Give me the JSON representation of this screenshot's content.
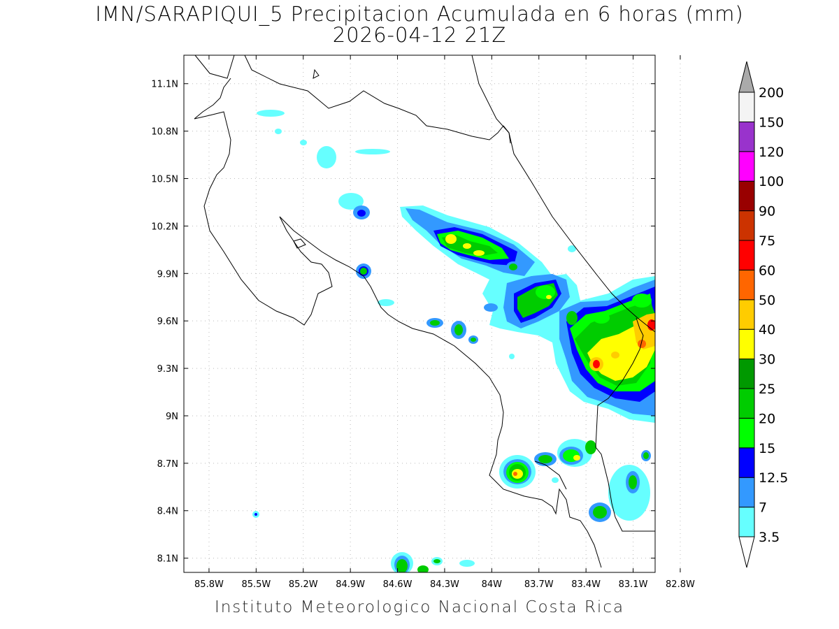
{
  "title": {
    "line1": "IMN/SARAPIQUI_5 Precipitacion Acumulada en 6 horas (mm)",
    "line2": "2026-04-12 21Z"
  },
  "credit": "Instituto Meteorologico Nacional Costa Rica",
  "axes": {
    "x_ticks": [
      "85.8W",
      "85.5W",
      "85.2W",
      "84.9W",
      "84.6W",
      "84.3W",
      "84W",
      "83.7W",
      "83.4W",
      "83.1W",
      "82.8W"
    ],
    "x_values": [
      -85.8,
      -85.5,
      -85.2,
      -84.9,
      -84.6,
      -84.3,
      -84.0,
      -83.7,
      -83.4,
      -83.1,
      -82.8
    ],
    "y_ticks": [
      "11.1N",
      "10.8N",
      "10.5N",
      "10.2N",
      "9.9N",
      "9.6N",
      "9.3N",
      "9N",
      "8.7N",
      "8.4N",
      "8.1N"
    ],
    "y_values": [
      11.1,
      10.8,
      10.5,
      10.2,
      9.9,
      9.6,
      9.3,
      9.0,
      8.7,
      8.4,
      8.1
    ],
    "lon_range": [
      -85.96,
      -82.96
    ],
    "lat_range": [
      8.01,
      11.28
    ]
  },
  "colorbar": {
    "labels": [
      "3.5",
      "7",
      "12.5",
      "15",
      "20",
      "25",
      "30",
      "40",
      "50",
      "60",
      "75",
      "90",
      "100",
      "120",
      "150",
      "200"
    ],
    "colors": [
      "#ffffff",
      "#66ffff",
      "#3399ff",
      "#0000ff",
      "#00ff00",
      "#00cc00",
      "#009900",
      "#ffff00",
      "#ffcc00",
      "#ff6600",
      "#ff0000",
      "#cc3300",
      "#990000",
      "#ff00ff",
      "#9933cc",
      "#f4f4f4",
      "#aaaaaa"
    ]
  },
  "colors": {
    "coast": "#000000",
    "grid": "#bbbbbb"
  }
}
